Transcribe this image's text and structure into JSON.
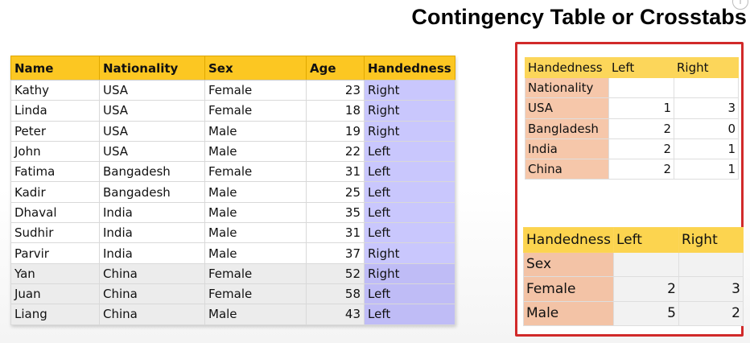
{
  "slide": {
    "title": "Contingency Table or Crosstabs"
  },
  "main_table": {
    "headers": [
      "Name",
      "Nationality",
      "Sex",
      "Age",
      "Handedness"
    ],
    "rows": [
      [
        "Kathy",
        "USA",
        "Female",
        "23",
        "Right"
      ],
      [
        "Linda",
        "USA",
        "Female",
        "18",
        "Right"
      ],
      [
        "Peter",
        "USA",
        "Male",
        "19",
        "Right"
      ],
      [
        "John",
        "USA",
        "Male",
        "22",
        "Left"
      ],
      [
        "Fatima",
        "Bangadesh",
        "Female",
        "31",
        "Left"
      ],
      [
        "Kadir",
        "Bangadesh",
        "Male",
        "25",
        "Left"
      ],
      [
        "Dhaval",
        "India",
        "Male",
        "35",
        "Left"
      ],
      [
        "Sudhir",
        "India",
        "Male",
        "31",
        "Left"
      ],
      [
        "Parvir",
        "India",
        "Male",
        "37",
        "Right"
      ],
      [
        "Yan",
        "China",
        "Female",
        "52",
        "Right"
      ],
      [
        "Juan",
        "China",
        "Female",
        "58",
        "Left"
      ],
      [
        "Liang",
        "China",
        "Male",
        "43",
        "Left"
      ]
    ]
  },
  "crosstab_nationality": {
    "header": [
      "Handedness",
      "Left",
      "Right"
    ],
    "row_var": "Nationality",
    "rows": [
      [
        "USA",
        "1",
        "3"
      ],
      [
        "Bangladesh",
        "2",
        "0"
      ],
      [
        "India",
        "2",
        "1"
      ],
      [
        "China",
        "2",
        "1"
      ]
    ]
  },
  "crosstab_sex": {
    "header": [
      "Handedness",
      "Left",
      "Right"
    ],
    "row_var": "Sex",
    "rows": [
      [
        "Female",
        "2",
        "3"
      ],
      [
        "Male",
        "5",
        "2"
      ]
    ]
  },
  "colors": {
    "header_yellow": "#fcc722",
    "handedness_col": "#c9c7fd",
    "row_label_peach": "#f6c7aa",
    "highlight_frame": "#d12a2a"
  }
}
